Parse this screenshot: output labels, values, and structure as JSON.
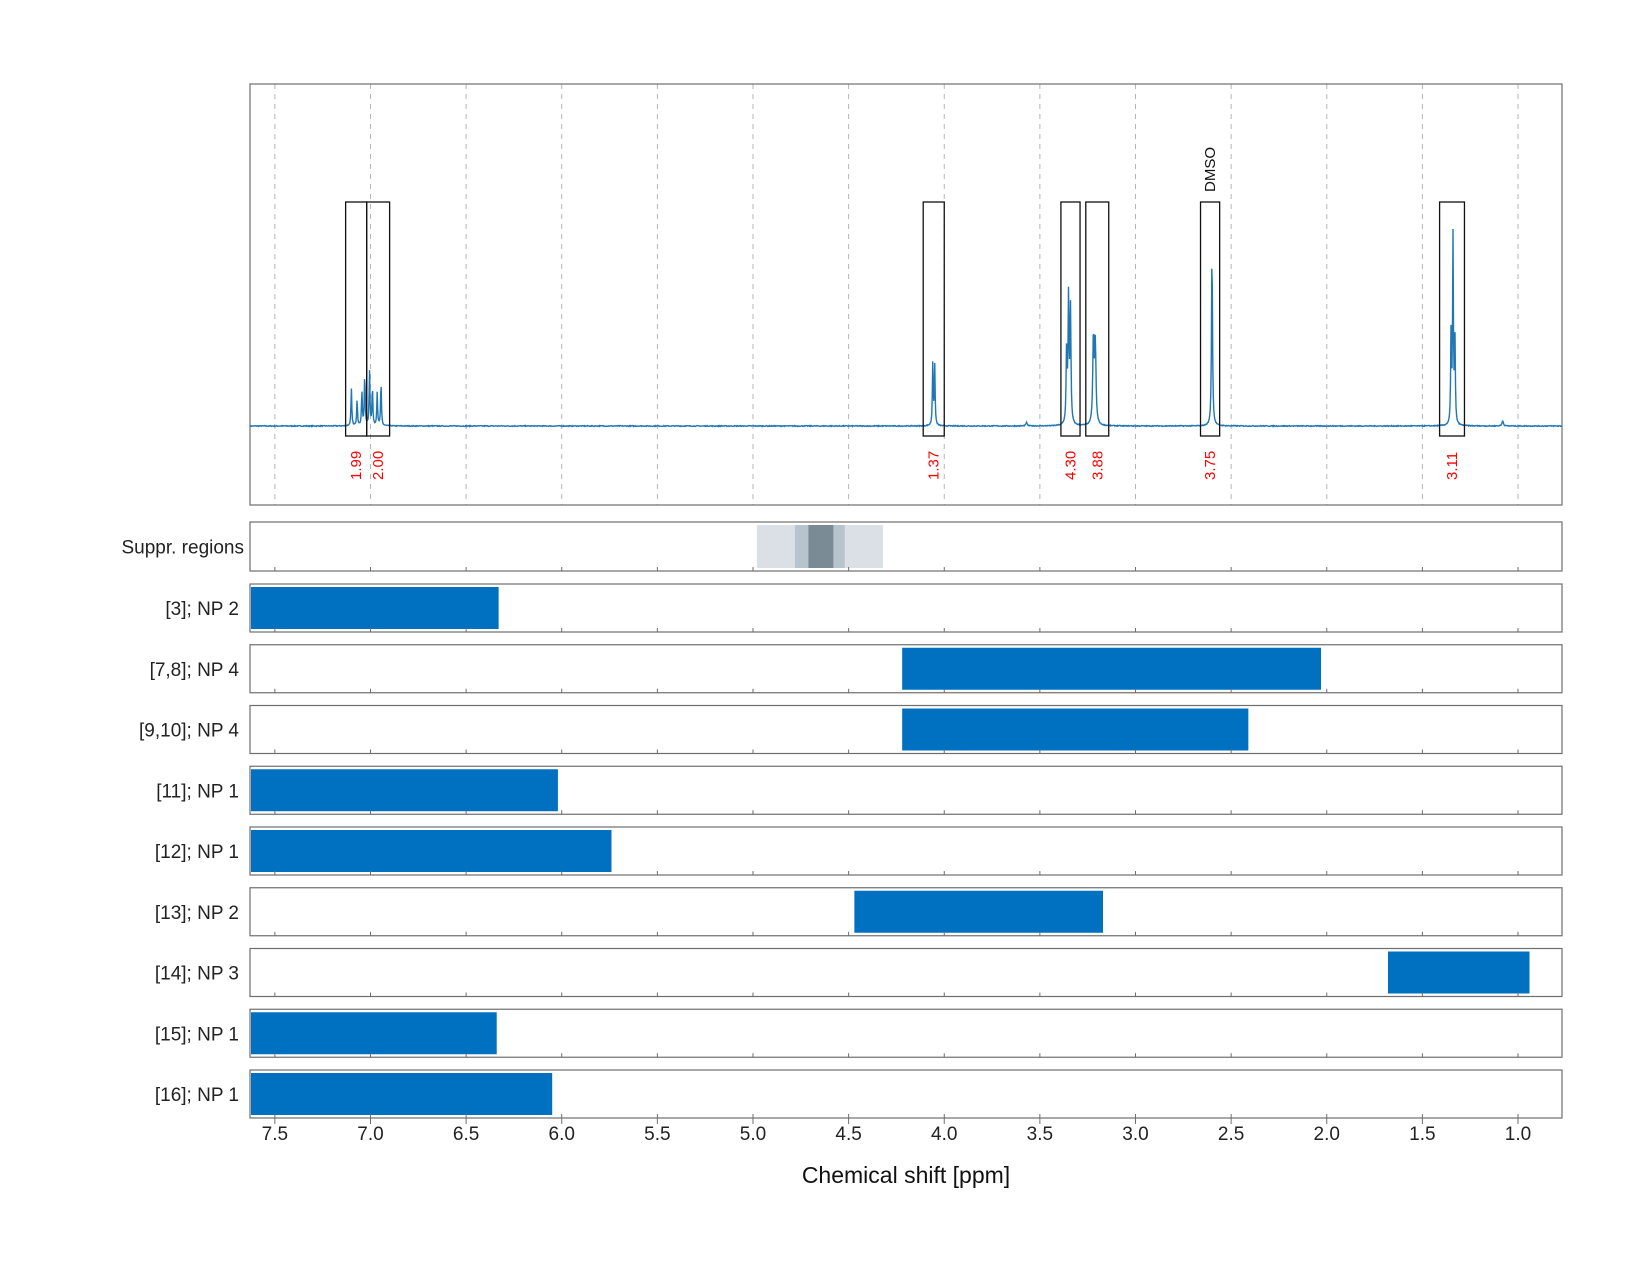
{
  "chart_data": {
    "type": "line",
    "xlabel": "Chemical shift [ppm]",
    "x_reversed": true,
    "xlim": [
      7.63,
      0.77
    ],
    "x_ticks": [
      7.5,
      7.0,
      6.5,
      6.0,
      5.5,
      5.0,
      4.5,
      4.0,
      3.5,
      3.0,
      2.5,
      2.0,
      1.5,
      1.0
    ],
    "x_tick_labels": [
      "7.5",
      "7.0",
      "6.5",
      "6.0",
      "5.5",
      "5.0",
      "4.5",
      "4.0",
      "3.5",
      "3.0",
      "2.5",
      "2.0",
      "1.5",
      "1.0"
    ],
    "grid": true,
    "spectrum": {
      "color": "#1f77b4",
      "peaks": [
        {
          "center": 7.1,
          "height": 0.17,
          "width": 0.0025
        },
        {
          "center": 7.07,
          "height": 0.12,
          "width": 0.0025
        },
        {
          "center": 7.045,
          "height": 0.16,
          "width": 0.0025
        },
        {
          "center": 7.03,
          "height": 0.24,
          "width": 0.0025
        },
        {
          "center": 7.005,
          "height": 0.25,
          "width": 0.0025
        },
        {
          "center": 6.99,
          "height": 0.18,
          "width": 0.0025
        },
        {
          "center": 6.965,
          "height": 0.15,
          "width": 0.0025
        },
        {
          "center": 6.945,
          "height": 0.2,
          "width": 0.0025
        },
        {
          "center": 4.06,
          "height": 0.28,
          "width": 0.0025
        },
        {
          "center": 4.05,
          "height": 0.28,
          "width": 0.0025
        },
        {
          "center": 3.57,
          "height": 0.015,
          "width": 0.004
        },
        {
          "center": 3.35,
          "height": 0.57,
          "width": 0.003
        },
        {
          "center": 3.34,
          "height": 0.52,
          "width": 0.003
        },
        {
          "center": 3.36,
          "height": 0.36,
          "width": 0.003
        },
        {
          "center": 3.22,
          "height": 0.4,
          "width": 0.004
        },
        {
          "center": 3.21,
          "height": 0.36,
          "width": 0.004
        },
        {
          "center": 2.6,
          "height": 0.81,
          "width": 0.003
        },
        {
          "center": 1.34,
          "height": 0.85,
          "width": 0.0025
        },
        {
          "center": 1.35,
          "height": 0.42,
          "width": 0.0025
        },
        {
          "center": 1.33,
          "height": 0.4,
          "width": 0.0025
        },
        {
          "center": 1.08,
          "height": 0.025,
          "width": 0.004
        }
      ]
    },
    "integration_regions": [
      {
        "start": 7.13,
        "end": 7.02,
        "value": "1.99"
      },
      {
        "start": 7.02,
        "end": 6.9,
        "value": "2.00"
      },
      {
        "start": 4.11,
        "end": 4.0,
        "value": "1.37"
      },
      {
        "start": 3.39,
        "end": 3.29,
        "value": "4.30"
      },
      {
        "start": 3.26,
        "end": 3.14,
        "value": "3.88"
      },
      {
        "start": 2.66,
        "end": 2.56,
        "value": "3.75",
        "annotation": "DMSO"
      },
      {
        "start": 1.41,
        "end": 1.28,
        "value": "3.11"
      }
    ],
    "suppression": {
      "label": "Suppr. regions",
      "bands": [
        {
          "start": 4.98,
          "end": 4.32,
          "shade": "#dae0e6"
        },
        {
          "start": 4.78,
          "end": 4.52,
          "shade": "#b7c3cd"
        },
        {
          "start": 4.71,
          "end": 4.58,
          "shade": "#7b8b96"
        }
      ]
    },
    "rows": [
      {
        "label": "[3]; NP 2",
        "start": 7.63,
        "end": 6.33
      },
      {
        "label": "[7,8]; NP 4",
        "start": 4.22,
        "end": 2.03
      },
      {
        "label": "[9,10]; NP 4",
        "start": 4.22,
        "end": 2.41
      },
      {
        "label": "[11]; NP 1",
        "start": 7.63,
        "end": 6.02
      },
      {
        "label": "[12]; NP 1",
        "start": 7.63,
        "end": 5.74
      },
      {
        "label": "[13]; NP 2",
        "start": 4.47,
        "end": 3.17
      },
      {
        "label": "[14]; NP 3",
        "start": 1.68,
        "end": 0.94
      },
      {
        "label": "[15]; NP 1",
        "start": 7.63,
        "end": 6.34
      },
      {
        "label": "[16]; NP 1",
        "start": 7.63,
        "end": 6.05
      }
    ],
    "bar_color": "#0070c0"
  }
}
